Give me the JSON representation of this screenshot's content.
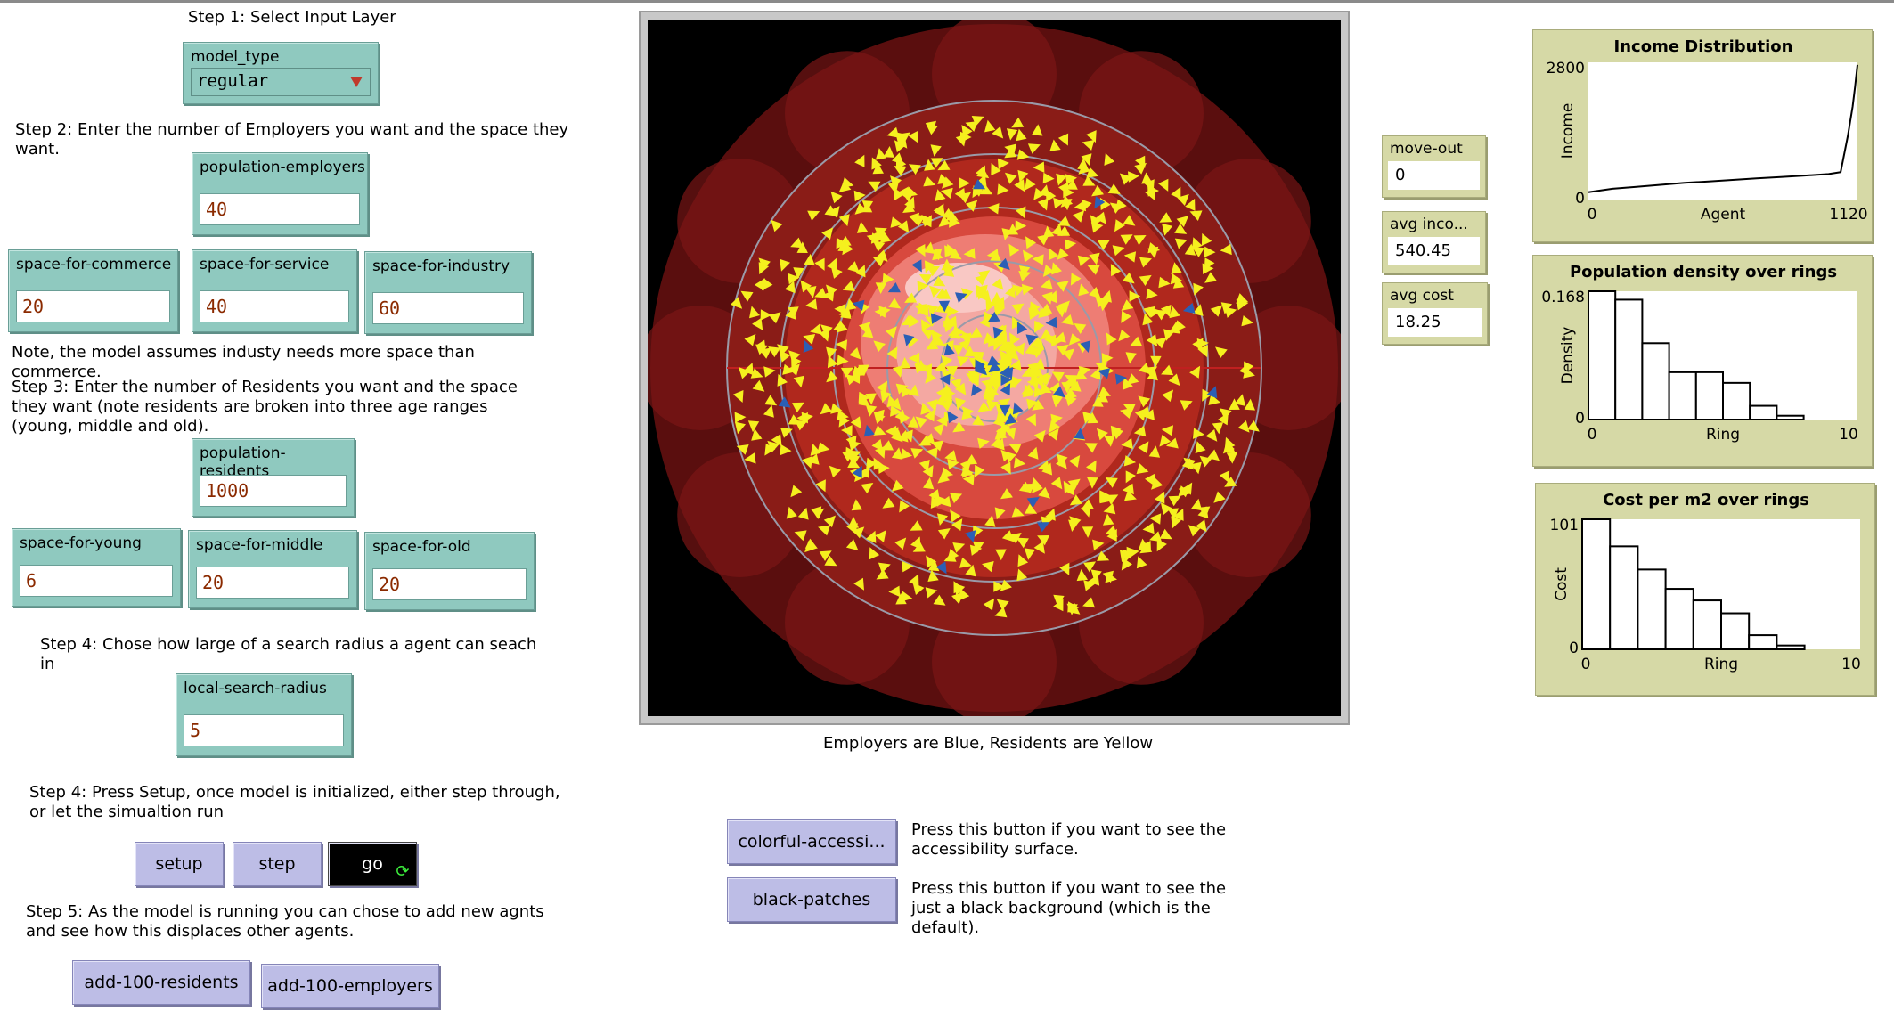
{
  "step1": {
    "text": "Step 1: Select Input Layer"
  },
  "model_type": {
    "label": "model_type",
    "value": "regular"
  },
  "step2": {
    "text": "Step 2: Enter the number of Employers you want and the space they\nwant."
  },
  "population_employers": {
    "label": "population-employers",
    "value": "40"
  },
  "space_for_commerce": {
    "label": "space-for-commerce",
    "value": "20"
  },
  "space_for_service": {
    "label": "space-for-service",
    "value": "40"
  },
  "space_for_industry": {
    "label": "space-for-industry",
    "value": "60"
  },
  "note_industry": {
    "text": "Note, the model assumes industy needs more space than\ncommerce."
  },
  "step3": {
    "text": "Step 3: Enter the number of Residents you want and the space\nthey want (note residents are broken into three age ranges\n(young, middle and old)."
  },
  "population_residents": {
    "label": "population-residents",
    "value": "1000"
  },
  "space_for_young": {
    "label": "space-for-young",
    "value": "6"
  },
  "space_for_middle": {
    "label": "space-for-middle",
    "value": "20"
  },
  "space_for_old": {
    "label": "space-for-old",
    "value": "20"
  },
  "step4a": {
    "text": "Step 4: Chose how large of a search radius a agent can seach\nin"
  },
  "local_search_radius": {
    "label": "local-search-radius",
    "value": "5"
  },
  "step4b": {
    "text": "Step 4: Press Setup, once model is initialized, either step through,\nor let the simualtion run"
  },
  "buttons": {
    "setup": "setup",
    "step": "step",
    "go": "go",
    "add_residents": "add-100-residents",
    "add_employers": "add-100-employers",
    "colorful": "colorful-accessi...",
    "black_patches": "black-patches"
  },
  "step5": {
    "text": "Step 5: As the model is running you can chose to add new agnts\nand see how this displaces other agents."
  },
  "world_caption": "Employers are Blue, Residents are Yellow",
  "colorful_note": "Press this button if you want to see the\naccessibility surface.",
  "black_note": "Press this button if you want to see the\njust a black background (which is the\ndefault).",
  "monitors": {
    "move_out": {
      "label": "move-out",
      "value": "0"
    },
    "avg_income": {
      "label": "avg inco...",
      "value": "540.45"
    },
    "avg_cost": {
      "label": "avg cost",
      "value": "18.25"
    }
  },
  "colors": {
    "employer": "#2b5fb5",
    "resident": "#f5f01e",
    "plot_bg": "#d6d9a6",
    "widget": "#8fc9bf",
    "button": "#bdbde6"
  },
  "chart_data": [
    {
      "type": "line",
      "title": "Income Distribution",
      "xlabel": "Agent",
      "ylabel": "Income",
      "xlim": [
        0,
        1120
      ],
      "ylim": [
        0,
        2800
      ],
      "x": [
        0,
        100,
        200,
        300,
        400,
        500,
        600,
        700,
        800,
        900,
        1000,
        1050,
        1080,
        1090,
        1100,
        1110,
        1120
      ],
      "y": [
        150,
        220,
        260,
        300,
        340,
        370,
        400,
        430,
        460,
        490,
        520,
        560,
        1300,
        1600,
        1900,
        2300,
        2750
      ]
    },
    {
      "type": "bar",
      "title": "Population density over rings",
      "xlabel": "Ring",
      "ylabel": "Density",
      "xlim": [
        0,
        10
      ],
      "ylim": [
        0,
        0.168
      ],
      "categories": [
        0,
        1,
        2,
        3,
        4,
        5,
        6,
        7,
        8,
        9
      ],
      "values": [
        0.168,
        0.157,
        0.1,
        0.062,
        0.062,
        0.048,
        0.018,
        0.005,
        0,
        0
      ]
    },
    {
      "type": "bar",
      "title": "Cost per m2 over rings",
      "xlabel": "Ring",
      "ylabel": "Cost",
      "xlim": [
        0,
        10
      ],
      "ylim": [
        0,
        101
      ],
      "categories": [
        0,
        1,
        2,
        3,
        4,
        5,
        6,
        7,
        8,
        9
      ],
      "values": [
        101,
        80,
        62,
        47,
        38,
        28,
        11,
        3,
        0,
        0
      ]
    }
  ]
}
